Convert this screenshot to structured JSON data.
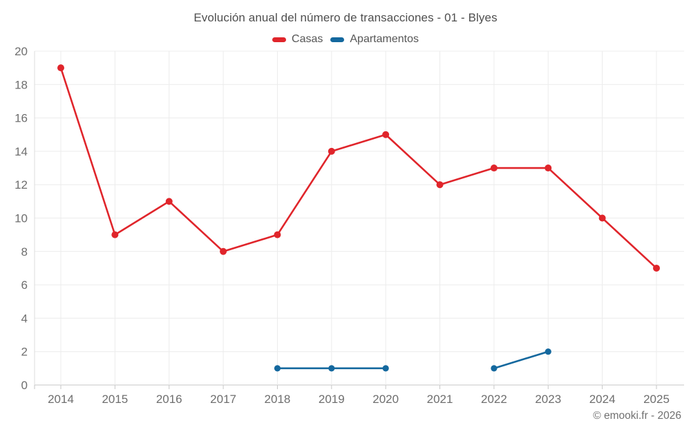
{
  "title": "Evolución anual del número de transacciones - 01 - Blyes",
  "footer": "© emooki.fr - 2026",
  "chart_data": {
    "type": "line",
    "x": [
      "2014",
      "2015",
      "2016",
      "2017",
      "2018",
      "2019",
      "2020",
      "2021",
      "2022",
      "2023",
      "2024",
      "2025"
    ],
    "series": [
      {
        "name": "Casas",
        "color": "#e0252b",
        "marker_radius": 5,
        "values": [
          19,
          9,
          11,
          8,
          9,
          14,
          15,
          12,
          13,
          13,
          10,
          7
        ]
      },
      {
        "name": "Apartamentos",
        "color": "#14689e",
        "marker_radius": 4.6,
        "values": [
          null,
          null,
          null,
          null,
          1,
          1,
          1,
          null,
          1,
          2,
          null,
          null
        ]
      }
    ],
    "title": "Evolución anual del número de transacciones - 01 - Blyes",
    "xlabel": "",
    "ylabel": "",
    "ylim": [
      0,
      20
    ],
    "ytick_step": 2,
    "yticks": [
      0,
      2,
      4,
      6,
      8,
      10,
      12,
      14,
      16,
      18,
      20
    ],
    "grid": true,
    "legend_position": "top",
    "line_width": 2.6
  },
  "style": {
    "background": "#ffffff",
    "grid_color": "#ececec",
    "axis_color": "#c6c6c6",
    "border_color": "#dcdcdc",
    "tick_text_color": "#6e6e6e",
    "title_color": "#4e4e4e",
    "legend_text_color": "#565656",
    "footer_color": "#707070"
  }
}
